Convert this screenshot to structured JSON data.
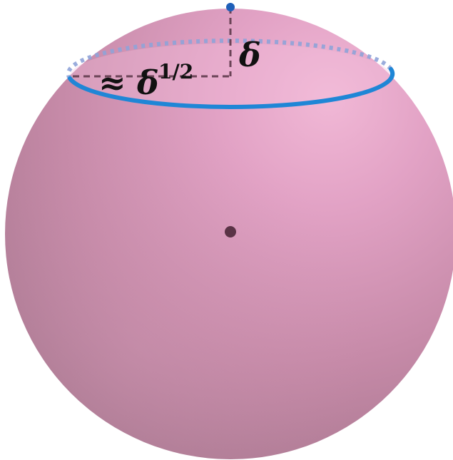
{
  "diagram": {
    "labels": {
      "height": "δ",
      "approx_sign": "≈",
      "radius_base": "δ",
      "radius_exponent": "1/2"
    },
    "colors": {
      "sphere_light": "#e7a8cc",
      "sphere_mid": "#c98aac",
      "sphere_dark": "#9f6f89",
      "ring": "#1f86d6",
      "ring_hidden": "#8fa3d8",
      "guide_lines": "#6b4457",
      "center_point": "#5a3346",
      "top_point": "#1f5fb8"
    },
    "elements": {
      "sphere": "sphere",
      "ring": "latitude-circle",
      "north_pole": "point",
      "center": "point"
    }
  }
}
